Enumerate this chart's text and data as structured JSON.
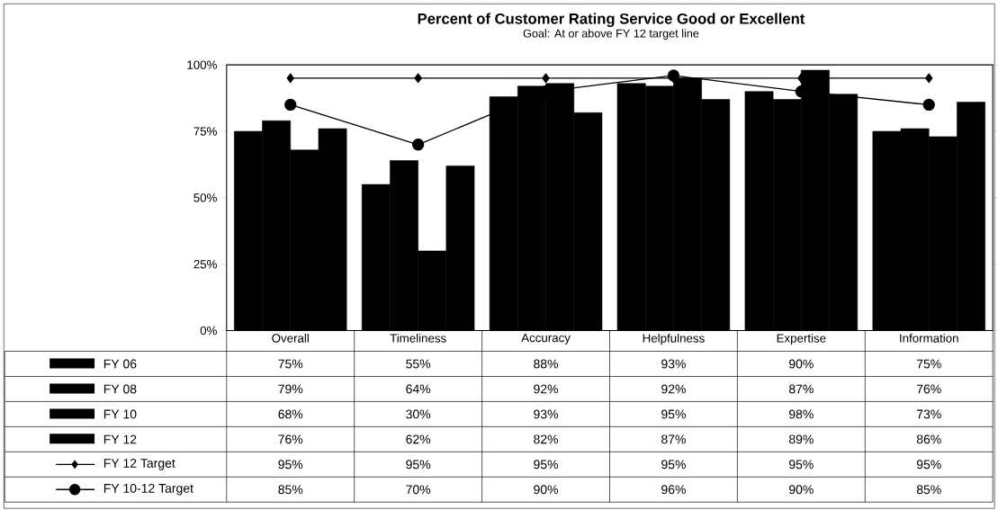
{
  "chart_data": {
    "type": "bar",
    "title": "Percent of Customer Rating Service Good or Excellent",
    "subtitle": "Goal: At or above FY 12 target line",
    "categories": [
      "Overall",
      "Timeliness",
      "Accuracy",
      "Helpfulness",
      "Expertise",
      "Information"
    ],
    "series": [
      {
        "name": "FY 06",
        "color": "#000000",
        "values": [
          75,
          55,
          88,
          93,
          90,
          75
        ],
        "value_labels": [
          "75%",
          "55%",
          "88%",
          "93%",
          "90%",
          "75%"
        ]
      },
      {
        "name": "FY 08",
        "color": "#000000",
        "values": [
          79,
          64,
          92,
          92,
          87,
          76
        ],
        "value_labels": [
          "79%",
          "64%",
          "92%",
          "92%",
          "87%",
          "76%"
        ]
      },
      {
        "name": "FY 10",
        "color": "#000000",
        "values": [
          68,
          30,
          93,
          95,
          98,
          73
        ],
        "value_labels": [
          "68%",
          "30%",
          "93%",
          "95%",
          "98%",
          "73%"
        ]
      },
      {
        "name": "FY 12",
        "color": "#000000",
        "values": [
          76,
          62,
          82,
          87,
          89,
          86
        ],
        "value_labels": [
          "76%",
          "62%",
          "82%",
          "87%",
          "89%",
          "86%"
        ]
      },
      {
        "name": "FY 12 Target",
        "type": "line",
        "marker": "diamond",
        "color": "#000000",
        "values": [
          95,
          95,
          95,
          95,
          95,
          95
        ],
        "value_labels": [
          "95%",
          "95%",
          "95%",
          "95%",
          "95%",
          "95%"
        ]
      },
      {
        "name": "FY 10-12 Target",
        "type": "line",
        "marker": "circle",
        "color": "#000000",
        "values": [
          85,
          70,
          90,
          96,
          90,
          85
        ],
        "value_labels": [
          "85%",
          "70%",
          "90%",
          "96%",
          "90%",
          "85%"
        ]
      }
    ],
    "ylim": [
      0,
      100
    ],
    "yticks": [
      {
        "value": 0,
        "label": "0%"
      },
      {
        "value": 25,
        "label": "25%"
      },
      {
        "value": 50,
        "label": "50%"
      },
      {
        "value": 75,
        "label": "75%"
      },
      {
        "value": 100,
        "label": "100%"
      }
    ],
    "legend": "bottom"
  }
}
